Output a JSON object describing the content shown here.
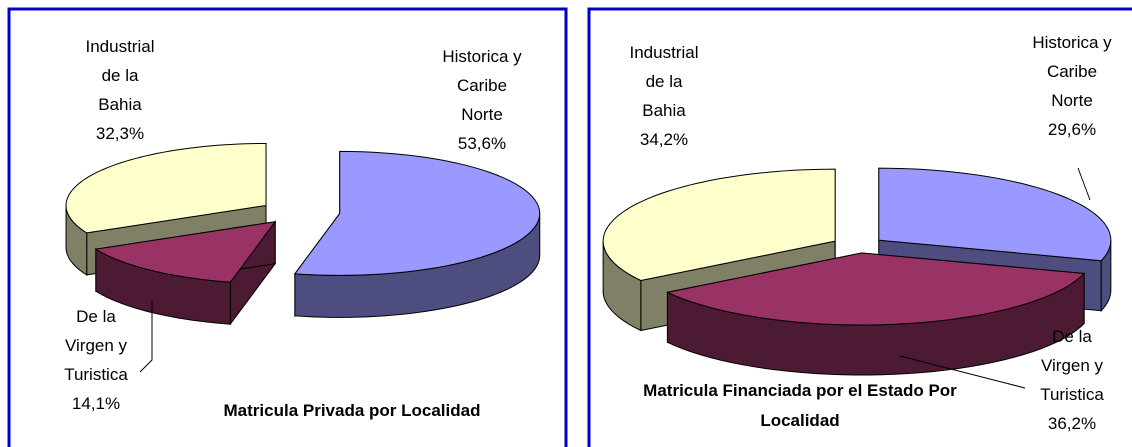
{
  "chart_data": [
    {
      "type": "pie3d",
      "title": "Matricula Privada por Localidad",
      "categories": [
        "Historica y\nCaribe\nNorte",
        "De la\nVirgen y\nTuristica",
        "Industrial\nde la\nBahia"
      ],
      "values": [
        53.6,
        14.1,
        32.3
      ],
      "value_labels": [
        "53,6%",
        "14,1%",
        "32,3%"
      ],
      "colors": [
        "#9999ff",
        "#993366",
        "#ffffcc"
      ]
    },
    {
      "type": "pie3d",
      "title": "Matricula Financiada por el Estado Por\nLocalidad",
      "categories": [
        "Historica y\nCaribe\nNorte",
        "De la\nVirgen y\nTuristica",
        "Industrial\nde la\nBahia"
      ],
      "values": [
        29.6,
        36.2,
        34.2
      ],
      "value_labels": [
        "29,6%",
        "36,2%",
        "34,2%"
      ],
      "colors": [
        "#9999ff",
        "#993366",
        "#ffffcc"
      ]
    }
  ]
}
